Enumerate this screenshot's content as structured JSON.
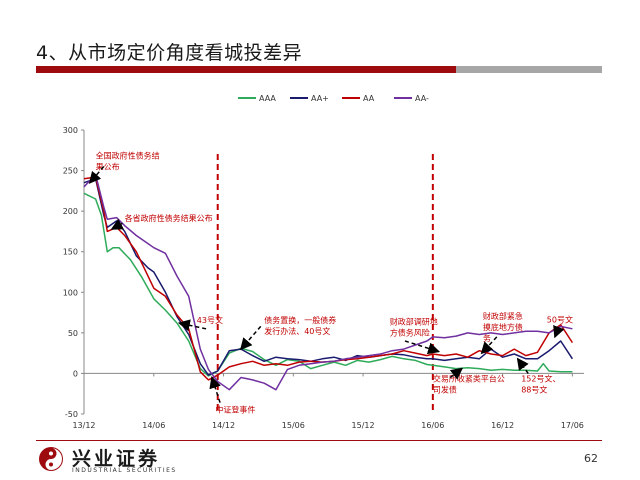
{
  "slide": {
    "title": "4、从市场定价角度看城投差异",
    "page_number": "62",
    "brand_name": "兴业证券",
    "brand_subtitle": "INDUSTRIAL SECURITIES",
    "accent_color": "#9e0b0f"
  },
  "chart_data": {
    "type": "line",
    "title": "",
    "xlabel": "",
    "ylabel": "",
    "x_tick_labels": [
      "13/12",
      "14/06",
      "14/12",
      "15/06",
      "15/12",
      "16/06",
      "16/12",
      "17/06"
    ],
    "x_ticks": [
      0,
      6,
      12,
      18,
      24,
      30,
      36,
      42
    ],
    "y_ticks": [
      -50,
      0,
      50,
      100,
      150,
      200,
      250,
      300
    ],
    "xlim": [
      0,
      43
    ],
    "ylim": [
      -50,
      300
    ],
    "grid": false,
    "legend_position": "top-center",
    "series": [
      {
        "name": "AAA",
        "color": "#2eab5a",
        "points": [
          [
            0,
            222
          ],
          [
            1,
            215
          ],
          [
            1.5,
            195
          ],
          [
            2,
            150
          ],
          [
            2.5,
            155
          ],
          [
            3,
            155
          ],
          [
            4,
            140
          ],
          [
            5,
            118
          ],
          [
            6,
            92
          ],
          [
            7,
            78
          ],
          [
            8,
            62
          ],
          [
            9,
            40
          ],
          [
            10,
            6
          ],
          [
            10.7,
            -3
          ],
          [
            11.5,
            3
          ],
          [
            12.5,
            25
          ],
          [
            13.5,
            31
          ],
          [
            14.5,
            27
          ],
          [
            15.5,
            17
          ],
          [
            16.5,
            10
          ],
          [
            17.5,
            17
          ],
          [
            18.5,
            15
          ],
          [
            19.5,
            6
          ],
          [
            20.5,
            10
          ],
          [
            21.5,
            14
          ],
          [
            22.5,
            10
          ],
          [
            23.5,
            16
          ],
          [
            24.5,
            14
          ],
          [
            25.5,
            17
          ],
          [
            26.5,
            21
          ],
          [
            27.5,
            18
          ],
          [
            28.5,
            16
          ],
          [
            29.5,
            11
          ],
          [
            30,
            10
          ],
          [
            31,
            8
          ],
          [
            32,
            6
          ],
          [
            33,
            7
          ],
          [
            34,
            6
          ],
          [
            35,
            4
          ],
          [
            36,
            5
          ],
          [
            37,
            4
          ],
          [
            38,
            4
          ],
          [
            39,
            3
          ],
          [
            39.5,
            12
          ],
          [
            40,
            3
          ],
          [
            41,
            2
          ],
          [
            42,
            2
          ]
        ]
      },
      {
        "name": "AA+",
        "color": "#1a1a6e",
        "points": [
          [
            0,
            235
          ],
          [
            1,
            240
          ],
          [
            1.7,
            195
          ],
          [
            2,
            180
          ],
          [
            2.8,
            188
          ],
          [
            3.5,
            175
          ],
          [
            4.5,
            145
          ],
          [
            5.5,
            130
          ],
          [
            6,
            125
          ],
          [
            7,
            100
          ],
          [
            8,
            70
          ],
          [
            9,
            48
          ],
          [
            10,
            12
          ],
          [
            10.7,
            -2
          ],
          [
            11.5,
            3
          ],
          [
            12.5,
            28
          ],
          [
            13.5,
            30
          ],
          [
            14.5,
            22
          ],
          [
            15.5,
            15
          ],
          [
            16.5,
            20
          ],
          [
            17.5,
            18
          ],
          [
            18.5,
            17
          ],
          [
            19.5,
            15
          ],
          [
            20.5,
            18
          ],
          [
            21.5,
            20
          ],
          [
            22.5,
            16
          ],
          [
            23.5,
            22
          ],
          [
            24.5,
            20
          ],
          [
            25.5,
            22
          ],
          [
            26.5,
            24
          ],
          [
            27.5,
            23
          ],
          [
            28.5,
            20
          ],
          [
            29.5,
            18
          ],
          [
            30,
            18
          ],
          [
            31,
            16
          ],
          [
            32,
            18
          ],
          [
            33,
            20
          ],
          [
            34,
            18
          ],
          [
            35,
            30
          ],
          [
            36,
            20
          ],
          [
            37,
            24
          ],
          [
            38,
            18
          ],
          [
            39,
            18
          ],
          [
            40,
            28
          ],
          [
            41,
            40
          ],
          [
            42,
            18
          ]
        ]
      },
      {
        "name": "AA",
        "color": "#c00000",
        "points": [
          [
            0,
            240
          ],
          [
            1,
            242
          ],
          [
            1.7,
            200
          ],
          [
            2,
            175
          ],
          [
            2.8,
            180
          ],
          [
            3.5,
            170
          ],
          [
            4.5,
            150
          ],
          [
            5.5,
            120
          ],
          [
            6,
            105
          ],
          [
            7,
            95
          ],
          [
            8,
            72
          ],
          [
            9,
            55
          ],
          [
            10,
            2
          ],
          [
            10.7,
            -8
          ],
          [
            11.5,
            -2
          ],
          [
            12.5,
            8
          ],
          [
            13.5,
            12
          ],
          [
            14.5,
            15
          ],
          [
            15.5,
            10
          ],
          [
            16.5,
            12
          ],
          [
            17.5,
            10
          ],
          [
            18.5,
            14
          ],
          [
            19.5,
            15
          ],
          [
            20.5,
            14
          ],
          [
            21.5,
            15
          ],
          [
            22.5,
            17
          ],
          [
            23.5,
            18
          ],
          [
            24.5,
            20
          ],
          [
            25.5,
            22
          ],
          [
            26.5,
            24
          ],
          [
            27.5,
            28
          ],
          [
            28.5,
            25
          ],
          [
            29.5,
            22
          ],
          [
            30,
            24
          ],
          [
            31,
            22
          ],
          [
            32,
            24
          ],
          [
            33,
            20
          ],
          [
            34,
            28
          ],
          [
            35,
            24
          ],
          [
            36,
            22
          ],
          [
            37,
            30
          ],
          [
            38,
            22
          ],
          [
            39,
            26
          ],
          [
            40,
            50
          ],
          [
            41,
            60
          ],
          [
            42,
            38
          ]
        ]
      },
      {
        "name": "AA-",
        "color": "#7030a0",
        "points": [
          [
            0,
            230
          ],
          [
            1,
            245
          ],
          [
            1.7,
            205
          ],
          [
            2,
            190
          ],
          [
            2.8,
            192
          ],
          [
            3.5,
            182
          ],
          [
            4.5,
            170
          ],
          [
            5.5,
            160
          ],
          [
            6,
            155
          ],
          [
            7,
            148
          ],
          [
            8,
            120
          ],
          [
            9,
            95
          ],
          [
            10,
            30
          ],
          [
            10.7,
            5
          ],
          [
            11.5,
            -10
          ],
          [
            12.5,
            -20
          ],
          [
            13.5,
            -5
          ],
          [
            14.5,
            -8
          ],
          [
            15.5,
            -12
          ],
          [
            16.5,
            -20
          ],
          [
            17.5,
            5
          ],
          [
            18.5,
            10
          ],
          [
            19.5,
            12
          ],
          [
            20.5,
            14
          ],
          [
            21.5,
            15
          ],
          [
            22.5,
            18
          ],
          [
            23.5,
            20
          ],
          [
            24.5,
            22
          ],
          [
            25.5,
            24
          ],
          [
            26.5,
            28
          ],
          [
            27.5,
            30
          ],
          [
            28.5,
            35
          ],
          [
            29.5,
            40
          ],
          [
            30,
            45
          ],
          [
            31,
            44
          ],
          [
            32,
            46
          ],
          [
            33,
            50
          ],
          [
            34,
            48
          ],
          [
            35,
            50
          ],
          [
            36,
            48
          ],
          [
            37,
            50
          ],
          [
            38,
            52
          ],
          [
            39,
            52
          ],
          [
            40,
            50
          ],
          [
            41,
            58
          ],
          [
            42,
            55
          ]
        ]
      }
    ],
    "events": [
      {
        "x": 11.5,
        "label": "中证登事件"
      },
      {
        "x": 30,
        "label": "财政部调研地方债务风险"
      }
    ],
    "annotations": [
      {
        "lines": [
          "全国政府性债务结",
          "果公布"
        ],
        "color": "#c00000",
        "x": 1,
        "y": 265
      },
      {
        "lines": [
          "各省政府性债务结果公布"
        ],
        "color": "#c00000",
        "x": 3.5,
        "y": 188
      },
      {
        "lines": [
          "43号文"
        ],
        "color": "#c00000",
        "x": 9.7,
        "y": 62
      },
      {
        "lines": [
          "中证登事件"
        ],
        "color": "#c00000",
        "x": 11.3,
        "y": -48
      },
      {
        "lines": [
          "债务置换，一般债券",
          "发行办法、40号文"
        ],
        "color": "#c00000",
        "x": 15.5,
        "y": 62
      },
      {
        "lines": [
          "财政部调研地",
          "方债务风险"
        ],
        "color": "#c00000",
        "x": 26.3,
        "y": 60
      },
      {
        "lines": [
          "财政部紧急",
          "摸底地方债",
          "务"
        ],
        "color": "#c00000",
        "x": 34.3,
        "y": 67
      },
      {
        "lines": [
          "50号文"
        ],
        "color": "#c00000",
        "x": 39.8,
        "y": 63
      },
      {
        "lines": [
          "交易所收紧类平台公",
          "司发债"
        ],
        "color": "#c00000",
        "x": 30,
        "y": -10
      },
      {
        "lines": [
          "152号文、",
          "88号文"
        ],
        "color": "#c00000",
        "x": 37.6,
        "y": -10
      }
    ]
  }
}
